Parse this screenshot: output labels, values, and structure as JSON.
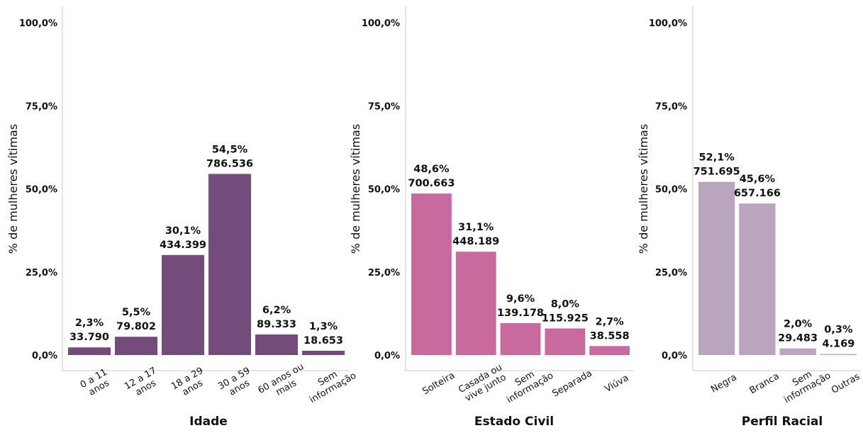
{
  "chart_data": [
    {
      "type": "bar",
      "xlabel": "Idade",
      "ylabel": "% de mulheres vítimas",
      "ylim": [
        0,
        100
      ],
      "y_ticks": [
        "0,0%",
        "25,0%",
        "50,0%",
        "75,0%",
        "100,0%"
      ],
      "y_tick_values": [
        0,
        25,
        50,
        75,
        100
      ],
      "color": "#744C7B",
      "categories": [
        [
          "0 a 11",
          "anos"
        ],
        [
          "12 a 17",
          "anos"
        ],
        [
          "18 a 29",
          "anos"
        ],
        [
          "30 a 59",
          "anos"
        ],
        [
          "60 anos ou",
          "mais"
        ],
        [
          "Sem",
          "informação"
        ]
      ],
      "values": [
        2.3,
        5.5,
        30.1,
        54.5,
        6.2,
        1.3
      ],
      "value_labels": [
        "2,3%",
        "5,5%",
        "30,1%",
        "54,5%",
        "6,2%",
        "1,3%"
      ],
      "count_labels": [
        "33.790",
        "79.802",
        "434.399",
        "786.536",
        "89.333",
        "18.653"
      ],
      "grid": false
    },
    {
      "type": "bar",
      "xlabel": "Estado Civil",
      "ylabel": "% de mulheres vítimas",
      "ylim": [
        0,
        100
      ],
      "y_ticks": [
        "0,0%",
        "25,0%",
        "50,0%",
        "75,0%",
        "100,0%"
      ],
      "y_tick_values": [
        0,
        25,
        50,
        75,
        100
      ],
      "color": "#C96A9F",
      "categories": [
        [
          "Solteira"
        ],
        [
          "Casada ou",
          "vive junto"
        ],
        [
          "Sem",
          "informação"
        ],
        [
          "Separada"
        ],
        [
          "Viúva"
        ]
      ],
      "values": [
        48.6,
        31.1,
        9.6,
        8.0,
        2.7
      ],
      "value_labels": [
        "48,6%",
        "31,1%",
        "9,6%",
        "8,0%",
        "2,7%"
      ],
      "count_labels": [
        "700.663",
        "448.189",
        "139.178",
        "115.925",
        "38.558"
      ],
      "grid": false
    },
    {
      "type": "bar",
      "xlabel": "Perfil Racial",
      "ylabel": "% de mulheres vítimas",
      "ylim": [
        0,
        100
      ],
      "y_ticks": [
        "0,0%",
        "25,0%",
        "50,0%",
        "75,0%",
        "100,0%"
      ],
      "y_tick_values": [
        0,
        25,
        50,
        75,
        100
      ],
      "color": "#B9A6BE",
      "categories": [
        [
          "Negra"
        ],
        [
          "Branca"
        ],
        [
          "Sem",
          "informação"
        ],
        [
          "Outras"
        ]
      ],
      "values": [
        52.1,
        45.6,
        2.0,
        0.3
      ],
      "value_labels": [
        "52,1%",
        "45,6%",
        "2,0%",
        "0,3%"
      ],
      "count_labels": [
        "751.695",
        "657.166",
        "29.483",
        "4.169"
      ],
      "grid": false
    }
  ]
}
